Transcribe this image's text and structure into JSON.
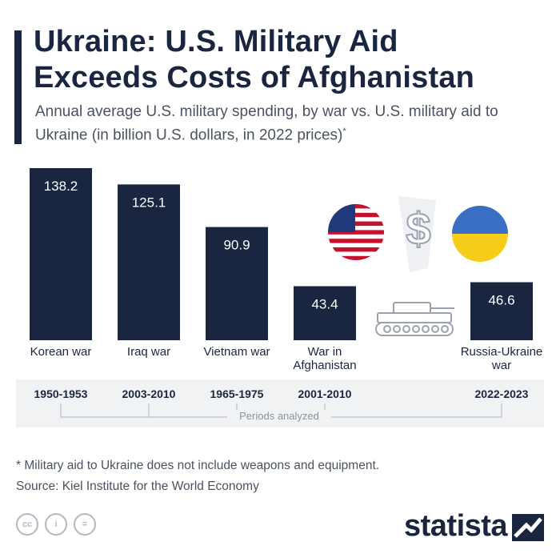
{
  "title": "Ukraine: U.S. Military Aid\nExceeds Costs of Afghanistan",
  "subtitle": "Annual average U.S. military spending, by war vs. U.S. military aid to Ukraine (in billion U.S. dollars, in 2022 prices)",
  "subtitle_mark": "*",
  "footnote": "* Military aid to Ukraine does not include weapons and equipment.",
  "source": "Source: Kiel Institute for the World Economy",
  "periods_caption": "Periods analyzed",
  "brand": "statista",
  "license_icons": [
    "cc-icon",
    "attribution-icon",
    "no-derivatives-icon"
  ],
  "license_text": [
    "cc",
    "i",
    "="
  ],
  "illustration_icons": [
    "us-flag-icon",
    "dollar-sign-icon",
    "tank-icon",
    "ukraine-flag-icon"
  ],
  "colors": {
    "bar": "#1a2540",
    "text": "#1a2540",
    "muted": "#4a5262",
    "band": "#f1f2f4"
  },
  "chart_data": {
    "type": "bar",
    "title": "Ukraine: U.S. Military Aid Exceeds Costs of Afghanistan",
    "categories": [
      "Korean war",
      "Iraq war",
      "Vietnam war",
      "War in Afghanistan",
      "Russia-Ukraine war"
    ],
    "periods": [
      "1950-1953",
      "2003-2010",
      "1965-1975",
      "2001-2010",
      "2022-2023"
    ],
    "values": [
      138.2,
      125.1,
      90.9,
      43.4,
      46.6
    ],
    "ylim": [
      0,
      138.2
    ],
    "grid": false,
    "legend": "none"
  }
}
